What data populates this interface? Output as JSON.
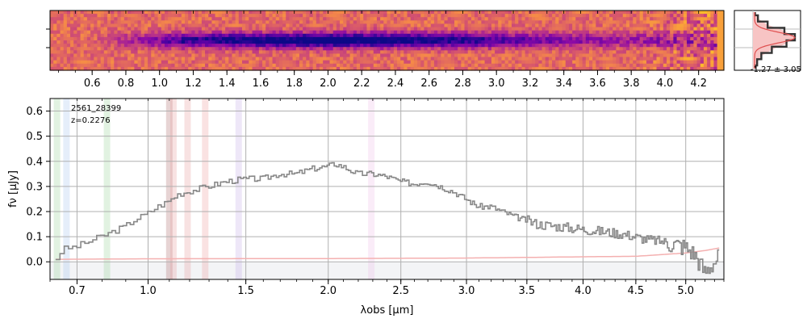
{
  "chart_data": [
    {
      "type": "heatmap",
      "panel": "2d-spectrum",
      "x_tick_labels": [
        "0.6",
        "0.8",
        "1.0",
        "1.2",
        "1.4",
        "1.6",
        "1.8",
        "2.0",
        "2.2",
        "2.4",
        "2.6",
        "2.8",
        "3.0",
        "3.2",
        "3.4",
        "3.6",
        "3.8",
        "4.0",
        "4.2"
      ],
      "x_tick_values": [
        0.6,
        0.8,
        1.0,
        1.2,
        1.4,
        1.6,
        1.8,
        2.0,
        2.2,
        2.4,
        2.6,
        2.8,
        3.0,
        3.2,
        3.4,
        3.6,
        3.8,
        4.0,
        4.2
      ],
      "xlim": [
        0.35,
        4.35
      ],
      "colormap": "plasma",
      "trace_peak_um": 1.75
    },
    {
      "type": "line",
      "panel": "spatial-profile",
      "annotation": "-1.27 ± 3.05",
      "profile": [
        0.05,
        0.12,
        0.35,
        0.75,
        1.0,
        0.8,
        0.45,
        0.2,
        0.1,
        0.05
      ]
    },
    {
      "type": "line",
      "panel": "1d-spectrum",
      "object_id": "2561_28399",
      "redshift_label": "z=0.2276",
      "xlabel": "λobs [μm]",
      "ylabel": "fν [μJy]",
      "x_scale": "sqrt",
      "xlim": [
        0.6,
        5.4
      ],
      "ylim": [
        -0.07,
        0.65
      ],
      "grid": true,
      "x_ticks": [
        0.7,
        1.0,
        1.5,
        2.0,
        2.5,
        3.0,
        3.5,
        4.0,
        4.5,
        5.0
      ],
      "x_tick_labels": [
        "0.7",
        "1.0",
        "1.5",
        "2.0",
        "2.5",
        "3.0",
        "3.5",
        "4.0",
        "4.5",
        "5.0"
      ],
      "y_ticks": [
        0.0,
        0.1,
        0.2,
        0.3,
        0.4,
        0.5,
        0.6
      ],
      "y_tick_labels": [
        "0.0",
        "0.1",
        "0.2",
        "0.3",
        "0.4",
        "0.5",
        "0.6"
      ],
      "series": [
        {
          "role": "flux",
          "color": "#888888",
          "x": [
            0.62,
            0.65,
            0.7,
            0.75,
            0.8,
            0.85,
            0.9,
            0.95,
            1.0,
            1.05,
            1.1,
            1.15,
            1.2,
            1.3,
            1.4,
            1.5,
            1.6,
            1.7,
            1.8,
            1.9,
            2.0,
            2.05,
            2.1,
            2.2,
            2.3,
            2.4,
            2.5,
            2.6,
            2.7,
            2.8,
            2.9,
            3.0,
            3.1,
            3.2,
            3.4,
            3.6,
            3.8,
            4.0,
            4.2,
            4.4,
            4.6,
            4.8,
            5.0,
            5.1,
            5.2,
            5.3,
            5.35
          ],
          "y": [
            0.0,
            0.05,
            0.06,
            0.08,
            0.1,
            0.12,
            0.14,
            0.17,
            0.19,
            0.22,
            0.24,
            0.27,
            0.28,
            0.3,
            0.32,
            0.33,
            0.33,
            0.35,
            0.35,
            0.37,
            0.38,
            0.39,
            0.38,
            0.35,
            0.35,
            0.34,
            0.32,
            0.31,
            0.32,
            0.3,
            0.28,
            0.25,
            0.22,
            0.22,
            0.18,
            0.15,
            0.14,
            0.13,
            0.12,
            0.11,
            0.09,
            0.08,
            0.06,
            0.03,
            -0.04,
            0.0,
            0.02
          ]
        },
        {
          "role": "error",
          "color": "#f4b0b0",
          "x": [
            0.62,
            1.0,
            2.0,
            3.0,
            4.0,
            4.5,
            4.8,
            5.0,
            5.2,
            5.35
          ],
          "y": [
            0.01,
            0.012,
            0.013,
            0.015,
            0.02,
            0.022,
            0.03,
            0.035,
            0.045,
            0.055
          ]
        }
      ],
      "line_markers": [
        {
          "x": 0.625,
          "color": "#9bd39b"
        },
        {
          "x": 0.66,
          "color": "#a9c6ee"
        },
        {
          "x": 0.82,
          "color": "#9bd39b"
        },
        {
          "x": 1.1,
          "color": "#b07070"
        },
        {
          "x": 1.12,
          "color": "#e8a0a0"
        },
        {
          "x": 1.19,
          "color": "#e8a0a0"
        },
        {
          "x": 1.28,
          "color": "#f0a0a0"
        },
        {
          "x": 1.46,
          "color": "#c8b0e8"
        },
        {
          "x": 2.29,
          "color": "#f0c0e8"
        }
      ]
    }
  ]
}
